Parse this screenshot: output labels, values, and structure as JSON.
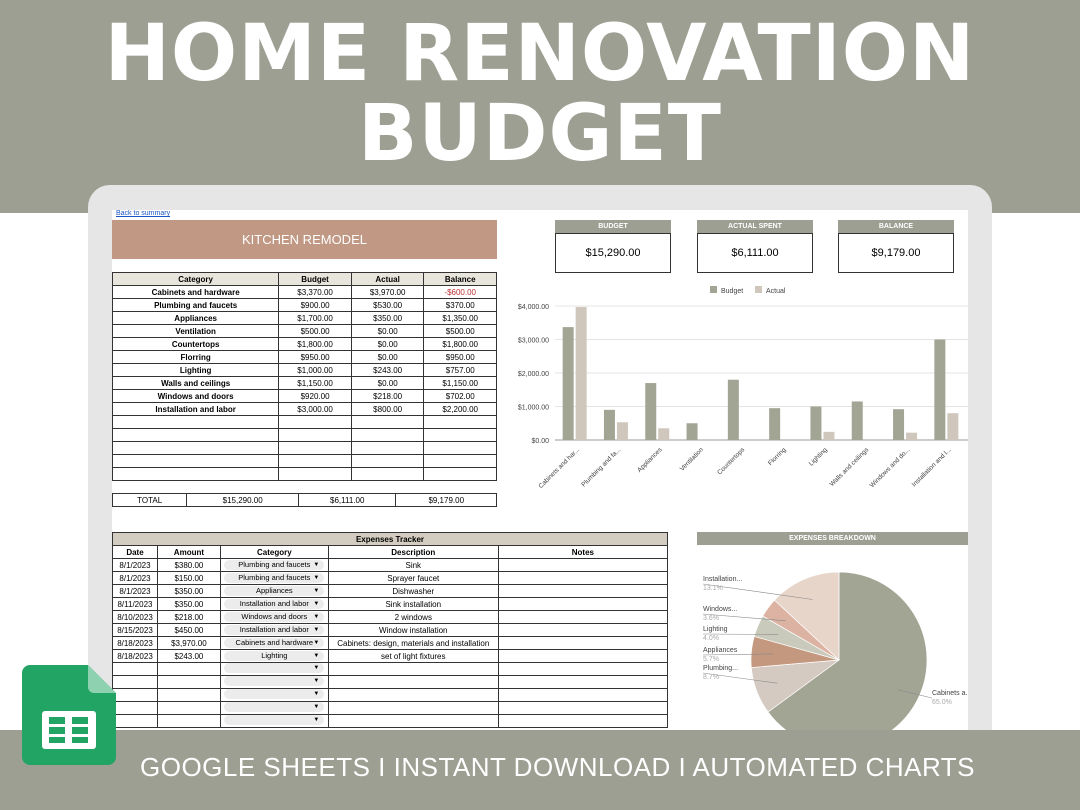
{
  "title": {
    "line1": "HOME RENOVATION",
    "line2": "BUDGET"
  },
  "tagline": "GOOGLE SHEETS I INSTANT DOWNLOAD I AUTOMATED CHARTS",
  "sheet": {
    "back_link": "Back to summary",
    "banner": "KITCHEN REMODEL",
    "summary": [
      {
        "label": "BUDGET",
        "value": "$15,290.00"
      },
      {
        "label": "ACTUAL SPENT",
        "value": "$6,111.00"
      },
      {
        "label": "BALANCE",
        "value": "$9,179.00"
      }
    ],
    "budget_table": {
      "headers": [
        "Category",
        "Budget",
        "Actual",
        "Balance"
      ],
      "rows": [
        [
          "Cabinets and hardware",
          "$3,370.00",
          "$3,970.00",
          "-$600.00"
        ],
        [
          "Plumbing and faucets",
          "$900.00",
          "$530.00",
          "$370.00"
        ],
        [
          "Appliances",
          "$1,700.00",
          "$350.00",
          "$1,350.00"
        ],
        [
          "Ventilation",
          "$500.00",
          "$0.00",
          "$500.00"
        ],
        [
          "Countertops",
          "$1,800.00",
          "$0.00",
          "$1,800.00"
        ],
        [
          "Florring",
          "$950.00",
          "$0.00",
          "$950.00"
        ],
        [
          "Lighting",
          "$1,000.00",
          "$243.00",
          "$757.00"
        ],
        [
          "Walls and ceilings",
          "$1,150.00",
          "$0.00",
          "$1,150.00"
        ],
        [
          "Windows and doors",
          "$920.00",
          "$218.00",
          "$702.00"
        ],
        [
          "Installation and labor",
          "$3,000.00",
          "$800.00",
          "$2,200.00"
        ]
      ],
      "total": [
        "TOTAL",
        "$15,290.00",
        "$6,111.00",
        "$9,179.00"
      ]
    },
    "expenses": {
      "title": "Expenses Tracker",
      "headers": [
        "Date",
        "Amount",
        "Category",
        "Description",
        "Notes"
      ],
      "rows": [
        [
          "8/1/2023",
          "$380.00",
          "Plumbing and faucets",
          "Sink",
          ""
        ],
        [
          "8/1/2023",
          "$150.00",
          "Plumbing and faucets",
          "Sprayer faucet",
          ""
        ],
        [
          "8/1/2023",
          "$350.00",
          "Appliances",
          "Dishwasher",
          ""
        ],
        [
          "8/11/2023",
          "$350.00",
          "Installation and labor",
          "Sink installation",
          ""
        ],
        [
          "8/10/2023",
          "$218.00",
          "Windows and doors",
          "2 windows",
          ""
        ],
        [
          "8/15/2023",
          "$450.00",
          "Installation and labor",
          "Window installation",
          ""
        ],
        [
          "8/18/2023",
          "$3,970.00",
          "Cabinets and hardware",
          "Cabinets: design, materials and installation",
          ""
        ],
        [
          "8/18/2023",
          "$243.00",
          "Lighting",
          "set of light fixtures",
          ""
        ]
      ]
    }
  },
  "chart_data": [
    {
      "type": "bar",
      "legend": "top",
      "grid": true,
      "categories": [
        "Cabinets and har...",
        "Plumbing and fa...",
        "Appliances",
        "Ventilation",
        "Countertops",
        "Florring",
        "Lighting",
        "Walls and ceilings",
        "Windows and do...",
        "Installation and l..."
      ],
      "series": [
        {
          "name": "Budget",
          "color": "#a3a594",
          "values": [
            3370,
            900,
            1700,
            500,
            1800,
            950,
            1000,
            1150,
            920,
            3000
          ]
        },
        {
          "name": "Actual",
          "color": "#cfc6bc",
          "values": [
            3970,
            530,
            350,
            0,
            0,
            0,
            243,
            0,
            218,
            800
          ]
        }
      ],
      "yticks": [
        "$0.00",
        "$1,000.00",
        "$2,000.00",
        "$3,000.00",
        "$4,000.00"
      ],
      "ylim": [
        0,
        4000
      ]
    },
    {
      "type": "pie",
      "title": "EXPENSES BREAKDOWN",
      "slices": [
        {
          "label": "Cabinets a...",
          "pct": "65.0%",
          "value": 65.0,
          "color": "#a3a594"
        },
        {
          "label": "Plumbing...",
          "pct": "8.7%",
          "value": 8.7,
          "color": "#d5cac1"
        },
        {
          "label": "Appliances",
          "pct": "5.7%",
          "value": 5.7,
          "color": "#c3987f"
        },
        {
          "label": "Lighting",
          "pct": "4.0%",
          "value": 4.0,
          "color": "#c9cabb"
        },
        {
          "label": "Windows...",
          "pct": "3.6%",
          "value": 3.6,
          "color": "#dcb3a3"
        },
        {
          "label": "Installation...",
          "pct": "13.1%",
          "value": 13.1,
          "color": "#e8d5c9"
        }
      ]
    }
  ]
}
